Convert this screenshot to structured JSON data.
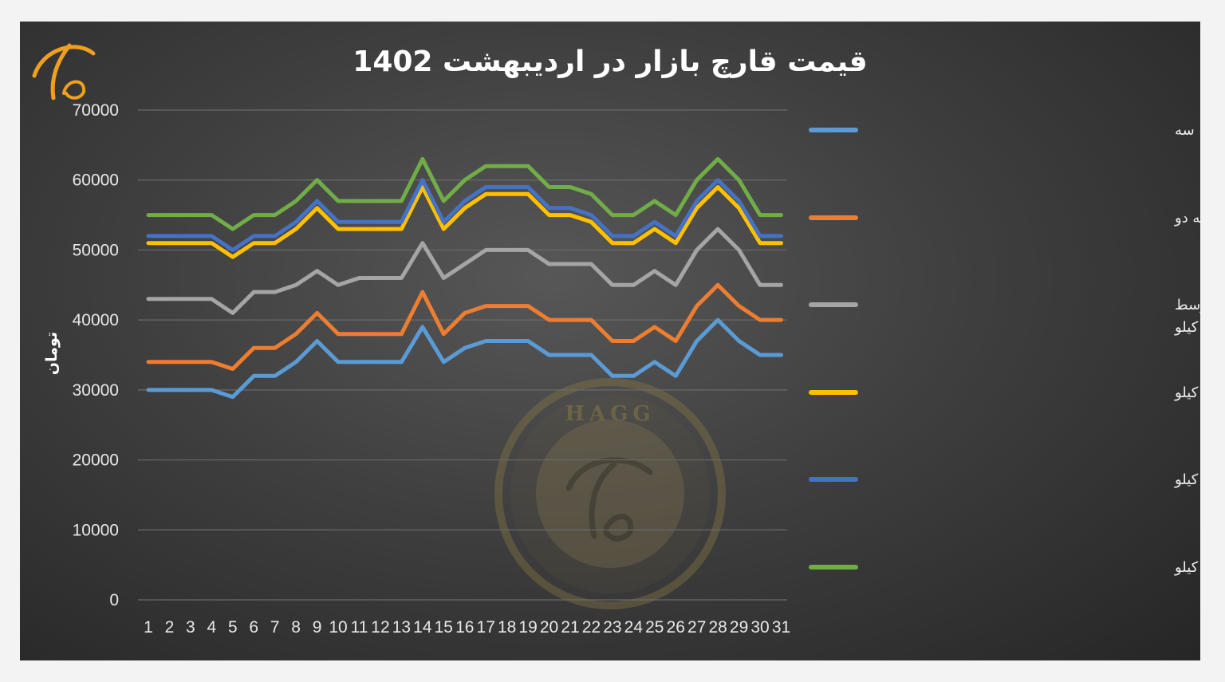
{
  "watermark_text": "HAGG",
  "chart_data": {
    "type": "line",
    "title": "قیمت قارچ بازار در اردیبهشت 1402",
    "xlabel": "",
    "ylabel": "تومان",
    "ylim": [
      0,
      70000
    ],
    "yticks": [
      "0",
      "10000",
      "20000",
      "30000",
      "40000",
      "50000",
      "60000",
      "70000"
    ],
    "grid": true,
    "legend_position": "right",
    "categories": [
      "1",
      "2",
      "3",
      "4",
      "5",
      "6",
      "7",
      "8",
      "9",
      "10",
      "11",
      "12",
      "13",
      "14",
      "15",
      "16",
      "17",
      "18",
      "19",
      "20",
      "21",
      "22",
      "23",
      "24",
      "25",
      "26",
      "27",
      "28",
      "29",
      "30",
      "31"
    ],
    "series": [
      {
        "name": "قارچ فله درجه سه",
        "color": "#5b9bd5",
        "values": [
          30000,
          30000,
          30000,
          30000,
          29000,
          32000,
          32000,
          34000,
          37000,
          34000,
          34000,
          34000,
          34000,
          39000,
          34000,
          36000,
          37000,
          37000,
          37000,
          35000,
          35000,
          35000,
          32000,
          32000,
          34000,
          32000,
          37000,
          40000,
          37000,
          35000,
          35000
        ]
      },
      {
        "name": "قارچ فله درجه دو",
        "color": "#ed7d31",
        "values": [
          34000,
          34000,
          34000,
          34000,
          33000,
          36000,
          36000,
          38000,
          41000,
          38000,
          38000,
          38000,
          38000,
          44000,
          38000,
          41000,
          42000,
          42000,
          42000,
          40000,
          40000,
          40000,
          37000,
          37000,
          39000,
          37000,
          42000,
          45000,
          42000,
          40000,
          40000
        ]
      },
      {
        "name": "قارچ فله در سبد و کیسه و کارتن (کیفیت متوسط )هر کیلو",
        "name_lines": [
          "قارچ فله در سبد و کیسه و کارتن (کیفیت متوسط",
          ")هر کیلو"
        ],
        "color": "#a5a5a5",
        "values": [
          43000,
          43000,
          43000,
          43000,
          41000,
          44000,
          44000,
          45000,
          47000,
          45000,
          46000,
          46000,
          46000,
          51000,
          46000,
          48000,
          50000,
          50000,
          50000,
          48000,
          48000,
          48000,
          45000,
          45000,
          47000,
          45000,
          50000,
          53000,
          50000,
          45000,
          45000
        ]
      },
      {
        "name": "قارچ فله در کیسه هر کیلو",
        "color": "#ffc000",
        "values": [
          51000,
          51000,
          51000,
          51000,
          49000,
          51000,
          51000,
          53000,
          56000,
          53000,
          53000,
          53000,
          53000,
          59000,
          53000,
          56000,
          58000,
          58000,
          58000,
          55000,
          55000,
          54000,
          51000,
          51000,
          53000,
          51000,
          56000,
          59000,
          56000,
          51000,
          51000
        ]
      },
      {
        "name": "قارچ فله سبد درجه یک هر کیلو",
        "color": "#4472c4",
        "values": [
          52000,
          52000,
          52000,
          52000,
          50000,
          52000,
          52000,
          54000,
          57000,
          54000,
          54000,
          54000,
          54000,
          60000,
          54000,
          57000,
          59000,
          59000,
          59000,
          56000,
          56000,
          55000,
          52000,
          52000,
          54000,
          52000,
          57000,
          60000,
          57000,
          52000,
          52000
        ]
      },
      {
        "name": "قارچ فله در سبد لوکس هر کیلو",
        "color": "#70ad47",
        "values": [
          55000,
          55000,
          55000,
          55000,
          53000,
          55000,
          55000,
          57000,
          60000,
          57000,
          57000,
          57000,
          57000,
          63000,
          57000,
          60000,
          62000,
          62000,
          62000,
          59000,
          59000,
          58000,
          55000,
          55000,
          57000,
          55000,
          60000,
          63000,
          60000,
          55000,
          55000
        ]
      }
    ]
  }
}
